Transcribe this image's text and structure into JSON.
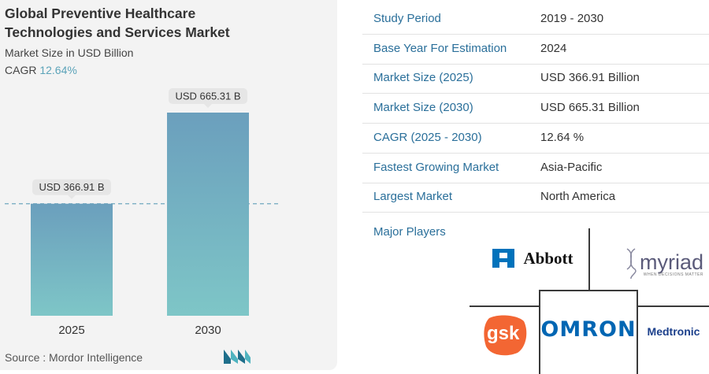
{
  "header": {
    "title_line1": "Global Preventive Healthcare",
    "title_line2": "Technologies and Services Market",
    "subtitle": "Market Size in USD Billion",
    "cagr_label": "CAGR",
    "cagr_value": "12.64%"
  },
  "chart_data": {
    "type": "bar",
    "categories": [
      "2025",
      "2030"
    ],
    "values": [
      366.91,
      665.31
    ],
    "data_labels": [
      "USD 366.91 B",
      "USD 665.31 B"
    ],
    "ylabel": "Market Size in USD Billion",
    "colors": {
      "bar_top": "#6b9fbd",
      "bar_bottom": "#7ec6c7",
      "reference_line": "#6fa8bf"
    }
  },
  "source": "Source :  Mordor Intelligence",
  "info_table": [
    {
      "label": "Study Period",
      "value": "2019 - 2030"
    },
    {
      "label": "Base Year For Estimation",
      "value": "2024"
    },
    {
      "label": "Market Size (2025)",
      "value": "USD 366.91 Billion"
    },
    {
      "label": "Market Size (2030)",
      "value": "USD 665.31 Billion"
    },
    {
      "label": "CAGR (2025 - 2030)",
      "value": "12.64 %"
    },
    {
      "label": "Fastest Growing Market",
      "value": "Asia-Pacific"
    },
    {
      "label": "Largest Market",
      "value": "North America"
    }
  ],
  "players": {
    "label": "Major Players",
    "logos": [
      {
        "name": "Abbott",
        "text": "Abbott",
        "color": "#0072bb"
      },
      {
        "name": "Myriad",
        "text": "myriad",
        "tagline": "WHEN DECISIONS MATTER",
        "color": "#5b5b7a"
      },
      {
        "name": "GSK",
        "text": "gsk",
        "color": "#f36633"
      },
      {
        "name": "Omron",
        "text": "OMRON",
        "color": "#0066b3"
      },
      {
        "name": "Medtronic",
        "text": "Medtronic",
        "color": "#1b3f8b"
      }
    ]
  }
}
